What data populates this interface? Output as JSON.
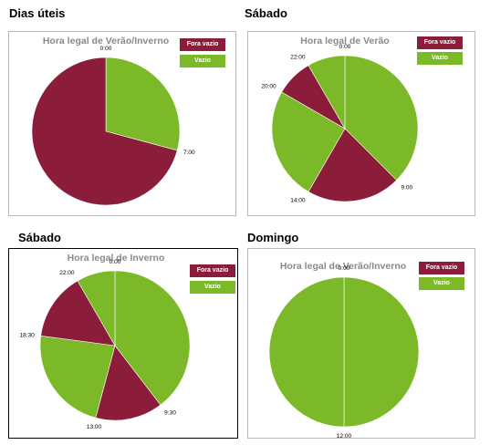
{
  "colors": {
    "fora_vazio": "#8b1c3a",
    "vazio": "#7cb928"
  },
  "panels": [
    {
      "heading": "Dias úteis",
      "title": "Hora legal de Verão/Inverno",
      "legend": [
        "Fora vazio",
        "Vazio"
      ]
    },
    {
      "heading": "Sábado",
      "title": "Hora legal de Verão",
      "legend": [
        "Fora vazio",
        "Vazio"
      ]
    },
    {
      "heading": "Sábado",
      "title": "Hora legal de Inverno",
      "legend": [
        "Fora vazio",
        "Vazio"
      ]
    },
    {
      "heading": "Domingo",
      "title": "Hora legal de Verão/Inverno",
      "legend": [
        "Fora vazio",
        "Vazio"
      ]
    }
  ],
  "chart_data": [
    {
      "type": "pie",
      "title": "Hora legal de Verão/Inverno",
      "legend": [
        "Fora vazio",
        "Vazio"
      ],
      "slices": [
        {
          "name": "Vazio",
          "from": "0:00",
          "to": "7:00",
          "hours": 7
        },
        {
          "name": "Fora vazio",
          "from": "7:00",
          "to": "0:00",
          "hours": 17
        }
      ],
      "tick_labels": [
        "0:00",
        "7:00"
      ]
    },
    {
      "type": "pie",
      "title": "Hora legal de Verão",
      "legend": [
        "Fora vazio",
        "Vazio"
      ],
      "slices": [
        {
          "name": "Vazio",
          "from": "0:00",
          "to": "9:00",
          "hours": 9
        },
        {
          "name": "Fora vazio",
          "from": "9:00",
          "to": "14:00",
          "hours": 5
        },
        {
          "name": "Vazio",
          "from": "14:00",
          "to": "20:00",
          "hours": 6
        },
        {
          "name": "Fora vazio",
          "from": "20:00",
          "to": "22:00",
          "hours": 2
        },
        {
          "name": "Vazio",
          "from": "22:00",
          "to": "0:00",
          "hours": 2
        }
      ],
      "tick_labels": [
        "0:00",
        "9:00",
        "14:00",
        "20:00",
        "22:00"
      ]
    },
    {
      "type": "pie",
      "title": "Hora legal de Inverno",
      "legend": [
        "Fora vazio",
        "Vazio"
      ],
      "slices": [
        {
          "name": "Vazio",
          "from": "0:00",
          "to": "9:30",
          "hours": 9.5
        },
        {
          "name": "Fora vazio",
          "from": "9:30",
          "to": "13:00",
          "hours": 3.5
        },
        {
          "name": "Vazio",
          "from": "13:00",
          "to": "18:30",
          "hours": 5.5
        },
        {
          "name": "Fora vazio",
          "from": "18:30",
          "to": "22:00",
          "hours": 3.5
        },
        {
          "name": "Vazio",
          "from": "22:00",
          "to": "0:00",
          "hours": 2
        }
      ],
      "tick_labels": [
        "0:00",
        "9:30",
        "13:00",
        "18:30",
        "22:00"
      ]
    },
    {
      "type": "pie",
      "title": "Hora legal de Verão/Inverno",
      "legend": [
        "Fora vazio",
        "Vazio"
      ],
      "slices": [
        {
          "name": "Vazio",
          "from": "0:00",
          "to": "12:00",
          "hours": 12
        },
        {
          "name": "Vazio",
          "from": "12:00",
          "to": "0:00",
          "hours": 12
        }
      ],
      "tick_labels": [
        "0:00",
        "12:00"
      ]
    }
  ]
}
